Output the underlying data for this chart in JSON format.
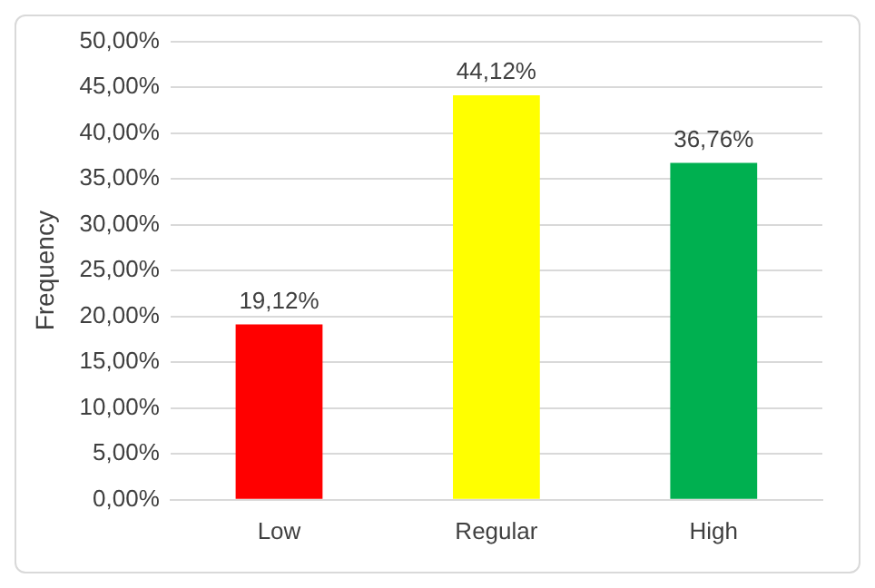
{
  "chart_data": {
    "type": "bar",
    "ylabel": "Frequency",
    "categories": [
      "Low",
      "Regular",
      "High"
    ],
    "values": [
      19.12,
      44.12,
      36.76
    ],
    "colors": [
      "#ff0000",
      "#ffff00",
      "#00b050"
    ],
    "value_labels": [
      "19,12%",
      "44,12%",
      "36,76%"
    ],
    "ylim": [
      0,
      50
    ],
    "yticks": [
      {
        "value": 0,
        "label": "0,00%"
      },
      {
        "value": 5,
        "label": "5,00%"
      },
      {
        "value": 10,
        "label": "10,00%"
      },
      {
        "value": 15,
        "label": "15,00%"
      },
      {
        "value": 20,
        "label": "20,00%"
      },
      {
        "value": 25,
        "label": "25,00%"
      },
      {
        "value": 30,
        "label": "30,00%"
      },
      {
        "value": 35,
        "label": "35,00%"
      },
      {
        "value": 40,
        "label": "40,00%"
      },
      {
        "value": 45,
        "label": "45,00%"
      },
      {
        "value": 50,
        "label": "50,00%"
      }
    ],
    "grid": "y"
  }
}
